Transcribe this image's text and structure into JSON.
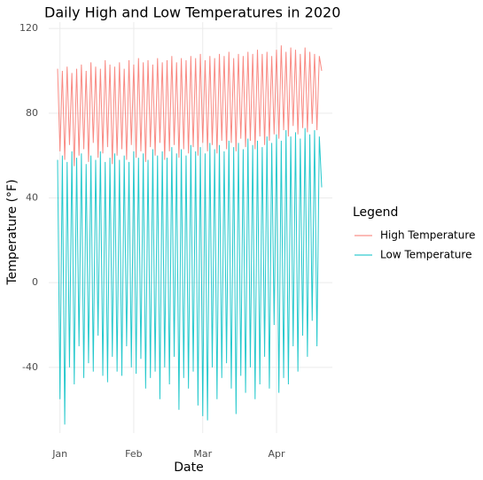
{
  "chart_data": {
    "type": "line",
    "title": "Daily High and Low Temperatures in 2020",
    "x_label": "Date",
    "y_label": "Temperature (°F)",
    "legend_title": "Legend",
    "legend_position": "right",
    "grid": true,
    "categories": [
      null,
      "Jan",
      null,
      null,
      null,
      null,
      null,
      null,
      null,
      null,
      null,
      null,
      null,
      null,
      null,
      null,
      null,
      null,
      null,
      null,
      null,
      null,
      null,
      null,
      null,
      null,
      null,
      null,
      null,
      null,
      null,
      null,
      "Feb",
      null,
      null,
      null,
      null,
      null,
      null,
      null,
      null,
      null,
      null,
      null,
      null,
      null,
      null,
      null,
      null,
      null,
      null,
      null,
      null,
      null,
      null,
      null,
      null,
      null,
      null,
      null,
      null,
      "Mar",
      null,
      null,
      null,
      null,
      null,
      null,
      null,
      null,
      null,
      null,
      null,
      null,
      null,
      null,
      null,
      null,
      null,
      null,
      null,
      null,
      null,
      null,
      null,
      null,
      null,
      null,
      null,
      null,
      null,
      null,
      "Apr",
      null,
      null,
      null,
      null,
      null,
      null,
      null,
      null,
      null,
      null,
      null,
      null,
      null,
      null,
      null,
      null,
      null,
      null,
      null
    ],
    "series": [
      {
        "name": "High Temperature",
        "color": "#F8766D",
        "values": [
          101,
          62,
          100,
          58,
          102,
          65,
          99,
          55,
          101,
          60,
          103,
          63,
          100,
          57,
          104,
          66,
          102,
          59,
          101,
          61,
          105,
          64,
          103,
          56,
          102,
          60,
          104,
          63,
          101,
          58,
          105,
          65,
          103,
          59,
          106,
          62,
          104,
          57,
          105,
          64,
          103,
          60,
          106,
          66,
          104,
          58,
          105,
          62,
          107,
          65,
          104,
          59,
          106,
          63,
          105,
          61,
          107,
          64,
          106,
          60,
          108,
          66,
          105,
          62,
          107,
          65,
          106,
          61,
          108,
          67,
          107,
          63,
          109,
          66,
          106,
          62,
          108,
          68,
          107,
          64,
          109,
          67,
          108,
          63,
          110,
          69,
          108,
          65,
          109,
          67,
          107,
          70,
          110,
          68,
          112,
          72,
          109,
          69,
          111,
          74,
          110,
          70,
          108,
          73,
          111,
          71,
          109,
          75,
          108,
          72,
          107,
          100
        ]
      },
      {
        "name": "Low Temperature",
        "color": "#00BFC4",
        "values": [
          58,
          -55,
          60,
          -67,
          57,
          -40,
          62,
          -48,
          59,
          -30,
          61,
          -45,
          56,
          -38,
          60,
          -42,
          58,
          -25,
          62,
          -44,
          57,
          -47,
          59,
          -35,
          61,
          -42,
          58,
          -44,
          60,
          -30,
          57,
          -40,
          62,
          -43,
          59,
          -36,
          61,
          -50,
          58,
          -45,
          63,
          -42,
          60,
          -55,
          62,
          -40,
          59,
          -48,
          64,
          -35,
          61,
          -60,
          63,
          -45,
          60,
          -50,
          65,
          -42,
          62,
          -58,
          64,
          -63,
          61,
          -65,
          66,
          -40,
          63,
          -55,
          65,
          -45,
          62,
          -38,
          67,
          -50,
          64,
          -62,
          66,
          -44,
          63,
          -52,
          68,
          -40,
          65,
          -55,
          67,
          -48,
          64,
          -35,
          69,
          -50,
          66,
          -20,
          70,
          -52,
          67,
          -45,
          72,
          -48,
          69,
          -30,
          71,
          -42,
          68,
          -25,
          73,
          -35,
          70,
          -18,
          72,
          -30,
          69,
          45
        ]
      }
    ],
    "ylim": [
      -71,
      123
    ],
    "yticks": [
      -40,
      0,
      40,
      80,
      120
    ]
  }
}
